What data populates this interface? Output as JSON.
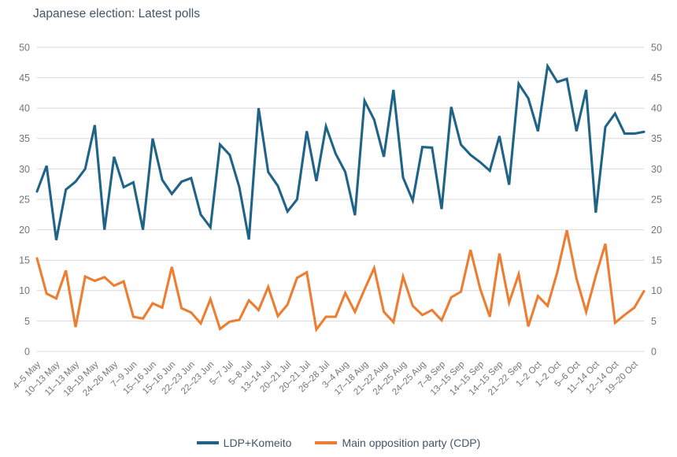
{
  "title": "Japanese election: Latest polls",
  "colors": {
    "series_ldp": "#1f6487",
    "series_cdp": "#ed7d31",
    "gridline": "#d9d9d9",
    "tick_text": "#757575",
    "heading_text": "#44546a",
    "background": "#ffffff"
  },
  "chart_data": {
    "type": "line",
    "title": "Japanese election: Latest polls",
    "xlabel": "",
    "ylabel": "",
    "ylim": [
      0,
      50
    ],
    "yticks": [
      0,
      5,
      10,
      15,
      20,
      25,
      30,
      35,
      40,
      45,
      50
    ],
    "grid": true,
    "dual_y_axis": true,
    "legend_position": "bottom",
    "x_tick_labels": [
      "4–5 May",
      "10–13 May",
      "11–13 May",
      "18–19 May",
      "24–26 May",
      "7–9 Jun",
      "15–16 Jun",
      "15–16 Jun",
      "22–23 Jun",
      "22–23 Jun",
      "5–7 Jul",
      "5–8 Jul",
      "13–14 Jul",
      "20–21 Jul",
      "20–21 Jul",
      "26–28 Jul",
      "3–4 Aug",
      "17–18 Aug",
      "21–22 Aug",
      "24–25 Aug",
      "24–25 Aug",
      "7–8 Sep",
      "13–15 Sep",
      "14–15 Sep",
      "14–15 Sep",
      "21–22 Sep",
      "1–2 Oct",
      "1–2 Oct",
      "5–6 Oct",
      "11–14 Oct",
      "12–14 Oct",
      "19–20 Oct"
    ],
    "labels_every_n_points": 2,
    "series": [
      {
        "name": "LDP+Komeito",
        "color": "#1f6487",
        "values": [
          26.3,
          30.5,
          18.3,
          26.6,
          27.9,
          30.0,
          37.2,
          20.0,
          32.0,
          27.0,
          27.8,
          20.0,
          35.0,
          28.2,
          25.9,
          27.9,
          28.5,
          22.5,
          20.4,
          34.0,
          32.3,
          27.0,
          18.4,
          40.0,
          29.5,
          27.2,
          23.0,
          25.0,
          36.2,
          28.0,
          37.0,
          32.5,
          29.5,
          22.4,
          41.2,
          38.1,
          32.0,
          43.0,
          28.6,
          24.8,
          33.6,
          33.5,
          23.4,
          40.2,
          34.0,
          32.3,
          31.1,
          29.7,
          35.4,
          27.4,
          44.0,
          41.6,
          36.2,
          46.9,
          44.3,
          44.8,
          36.2,
          43.0,
          22.8,
          36.9,
          39.1,
          35.8,
          35.8,
          36.1
        ]
      },
      {
        "name": "Main opposition party (CDP)",
        "color": "#ed7d31",
        "values": [
          15.3,
          9.5,
          8.7,
          13.3,
          4.0,
          12.3,
          11.6,
          12.2,
          10.8,
          11.5,
          5.7,
          5.4,
          7.9,
          7.2,
          13.9,
          7.1,
          6.4,
          4.6,
          8.6,
          3.7,
          4.9,
          5.2,
          8.4,
          6.8,
          10.6,
          5.8,
          7.7,
          12.1,
          13.0,
          3.6,
          5.7,
          5.7,
          9.6,
          6.5,
          10.2,
          13.7,
          6.5,
          4.8,
          12.3,
          7.5,
          6.0,
          6.8,
          5.1,
          8.9,
          9.8,
          16.7,
          10.3,
          5.7,
          16.1,
          8.0,
          12.7,
          4.1,
          9.1,
          7.5,
          13.0,
          19.9,
          12.0,
          6.5,
          12.4,
          17.7,
          4.7,
          6.0,
          7.2,
          9.9
        ]
      }
    ]
  },
  "legend": {
    "items": [
      {
        "label": "LDP+Komeito"
      },
      {
        "label": "Main opposition party (CDP)"
      }
    ]
  }
}
